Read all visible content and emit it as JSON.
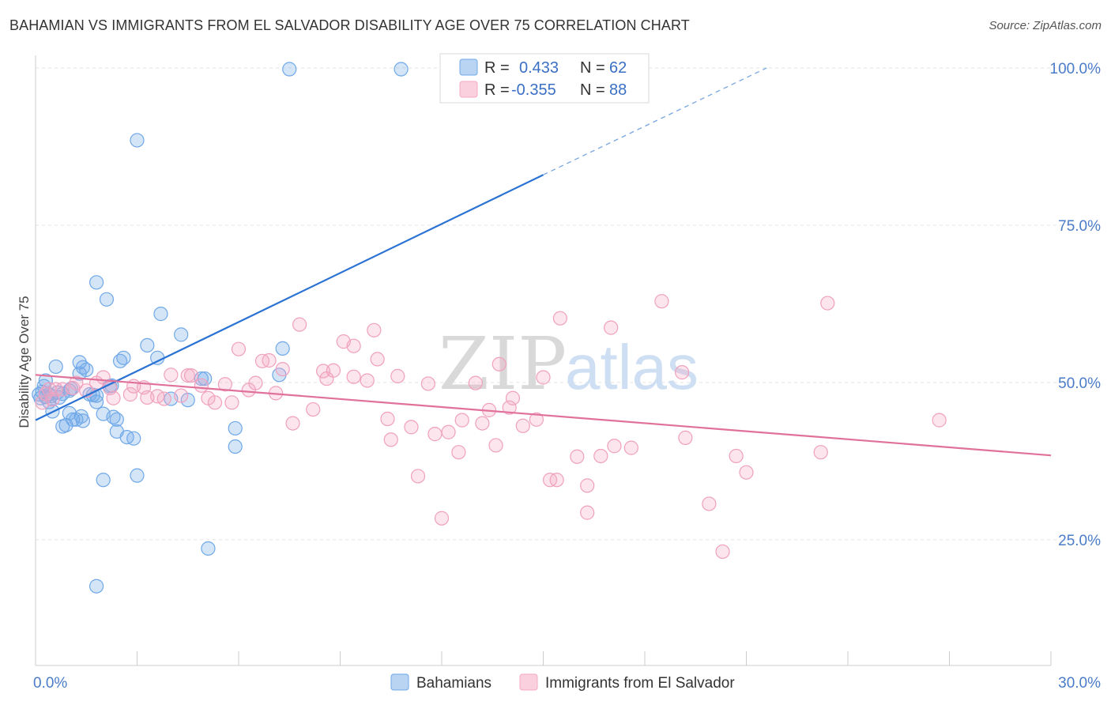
{
  "title": "BAHAMIAN VS IMMIGRANTS FROM EL SALVADOR DISABILITY AGE OVER 75 CORRELATION CHART",
  "source": "Source: ZipAtlas.com",
  "watermark": {
    "zip": "ZIP",
    "atlas": "atlas"
  },
  "colors": {
    "blue": "#6fa8e8",
    "blue_line": "#2a72d4",
    "pink": "#f5a9c4",
    "pink_line": "#e0719a",
    "tick_text": "#4a7cc9"
  },
  "legend": {
    "rows": [
      {
        "r_label": "R =",
        "r_value": "0.433",
        "n_label": "N =",
        "n_value": "62"
      },
      {
        "r_label": "R =",
        "r_value": "-0.355",
        "n_label": "N =",
        "n_value": "88"
      }
    ]
  },
  "chart_data": {
    "type": "scatter",
    "xlabel": "",
    "ylabel": "Disability Age Over 75",
    "xlim": [
      0,
      30
    ],
    "ylim": [
      5,
      102
    ],
    "x_tick_labels": [
      {
        "value": 0,
        "label": "0.0%"
      },
      {
        "value": 30,
        "label": "30.0%"
      }
    ],
    "y_tick_labels": [
      {
        "value": 25,
        "label": "25.0%"
      },
      {
        "value": 50,
        "label": "50.0%"
      },
      {
        "value": 75,
        "label": "75.0%"
      },
      {
        "value": 100,
        "label": "100.0%"
      }
    ],
    "grid": true,
    "legend_placement": "top-center",
    "series": [
      {
        "name": "Bahamians",
        "color": "#6fa8e8",
        "trend": {
          "x0": 0,
          "y0": 44.0,
          "x1": 15.0,
          "y1": 83.0,
          "dashed_to_x": 21.6,
          "dashed_to_y": 100.0
        },
        "points": [
          [
            0.1,
            48.1
          ],
          [
            0.2,
            48.5
          ],
          [
            0.3,
            47.7
          ],
          [
            0.3,
            50.3
          ],
          [
            0.4,
            46.9
          ],
          [
            0.4,
            48.1
          ],
          [
            0.5,
            45.4
          ],
          [
            0.6,
            52.5
          ],
          [
            0.7,
            47.6
          ],
          [
            0.8,
            48.2
          ],
          [
            0.8,
            43.0
          ],
          [
            0.9,
            43.2
          ],
          [
            1.0,
            48.7
          ],
          [
            1.0,
            45.1
          ],
          [
            1.1,
            44.1
          ],
          [
            1.2,
            44.1
          ],
          [
            1.3,
            53.2
          ],
          [
            1.3,
            51.4
          ],
          [
            1.4,
            52.4
          ],
          [
            1.4,
            43.9
          ],
          [
            1.5,
            52.0
          ],
          [
            1.6,
            48.1
          ],
          [
            1.7,
            48.0
          ],
          [
            1.8,
            47.9
          ],
          [
            1.8,
            17.6
          ],
          [
            1.8,
            46.9
          ],
          [
            1.8,
            65.9
          ],
          [
            2.0,
            45.0
          ],
          [
            2.0,
            34.5
          ],
          [
            2.1,
            63.2
          ],
          [
            2.2,
            49.4
          ],
          [
            2.3,
            44.5
          ],
          [
            2.4,
            44.1
          ],
          [
            2.4,
            42.2
          ],
          [
            2.5,
            53.4
          ],
          [
            2.6,
            53.9
          ],
          [
            2.7,
            41.3
          ],
          [
            2.9,
            41.1
          ],
          [
            3.0,
            88.5
          ],
          [
            3.0,
            35.2
          ],
          [
            3.3,
            55.9
          ],
          [
            3.6,
            53.9
          ],
          [
            3.7,
            60.9
          ],
          [
            4.0,
            47.4
          ],
          [
            4.3,
            57.6
          ],
          [
            4.5,
            47.2
          ],
          [
            4.9,
            50.6
          ],
          [
            5.0,
            50.6
          ],
          [
            5.1,
            23.6
          ],
          [
            5.9,
            42.7
          ],
          [
            5.9,
            39.8
          ],
          [
            7.2,
            51.2
          ],
          [
            7.3,
            55.4
          ],
          [
            7.5,
            99.8
          ],
          [
            10.8,
            99.8
          ],
          [
            0.15,
            47.5
          ],
          [
            0.45,
            47.8
          ],
          [
            0.65,
            48.4
          ],
          [
            1.05,
            49.0
          ],
          [
            1.35,
            44.6
          ],
          [
            2.25,
            49.5
          ],
          [
            0.25,
            49.4
          ]
        ]
      },
      {
        "name": "Immigrants from El Salvador",
        "color": "#f5a9c4",
        "trend": {
          "x0": 0,
          "y0": 51.2,
          "x1": 30,
          "y1": 38.4
        },
        "points": [
          [
            0.2,
            46.8
          ],
          [
            0.3,
            48.2
          ],
          [
            0.4,
            48.9
          ],
          [
            0.5,
            47.3
          ],
          [
            0.8,
            48.9
          ],
          [
            1.2,
            49.9
          ],
          [
            1.5,
            48.7
          ],
          [
            1.8,
            49.9
          ],
          [
            2.0,
            50.8
          ],
          [
            2.2,
            49.1
          ],
          [
            2.3,
            47.5
          ],
          [
            2.8,
            48.1
          ],
          [
            2.9,
            49.4
          ],
          [
            3.2,
            49.2
          ],
          [
            3.3,
            47.6
          ],
          [
            3.6,
            47.8
          ],
          [
            3.8,
            47.4
          ],
          [
            4.0,
            51.2
          ],
          [
            4.3,
            47.9
          ],
          [
            4.5,
            51.1
          ],
          [
            4.6,
            51.1
          ],
          [
            4.9,
            49.5
          ],
          [
            5.1,
            47.5
          ],
          [
            5.3,
            46.8
          ],
          [
            5.6,
            49.7
          ],
          [
            5.8,
            46.8
          ],
          [
            6.0,
            55.3
          ],
          [
            6.3,
            48.8
          ],
          [
            6.5,
            49.9
          ],
          [
            6.7,
            53.4
          ],
          [
            6.9,
            53.5
          ],
          [
            7.1,
            48.3
          ],
          [
            7.3,
            52.1
          ],
          [
            7.6,
            43.5
          ],
          [
            7.8,
            59.2
          ],
          [
            8.2,
            45.7
          ],
          [
            8.5,
            51.8
          ],
          [
            8.6,
            50.6
          ],
          [
            8.8,
            51.9
          ],
          [
            9.1,
            56.5
          ],
          [
            9.4,
            50.9
          ],
          [
            9.4,
            55.8
          ],
          [
            9.8,
            50.3
          ],
          [
            10.0,
            58.3
          ],
          [
            10.1,
            53.7
          ],
          [
            10.4,
            44.2
          ],
          [
            10.5,
            40.9
          ],
          [
            10.7,
            51.0
          ],
          [
            11.1,
            42.9
          ],
          [
            11.3,
            35.1
          ],
          [
            11.6,
            49.8
          ],
          [
            11.8,
            41.8
          ],
          [
            12.0,
            28.4
          ],
          [
            12.2,
            42.1
          ],
          [
            12.5,
            38.9
          ],
          [
            12.6,
            44.0
          ],
          [
            13.0,
            49.9
          ],
          [
            13.2,
            43.5
          ],
          [
            13.4,
            45.6
          ],
          [
            13.6,
            40.0
          ],
          [
            13.7,
            52.9
          ],
          [
            14.0,
            46.0
          ],
          [
            14.1,
            47.5
          ],
          [
            14.4,
            43.1
          ],
          [
            14.8,
            44.1
          ],
          [
            15.0,
            50.8
          ],
          [
            15.2,
            34.5
          ],
          [
            15.4,
            34.5
          ],
          [
            15.5,
            60.2
          ],
          [
            16.0,
            38.2
          ],
          [
            16.3,
            33.6
          ],
          [
            16.3,
            29.3
          ],
          [
            16.7,
            38.3
          ],
          [
            17.0,
            58.7
          ],
          [
            17.1,
            39.9
          ],
          [
            17.6,
            39.6
          ],
          [
            18.5,
            62.9
          ],
          [
            19.1,
            51.6
          ],
          [
            19.2,
            41.2
          ],
          [
            19.9,
            30.7
          ],
          [
            20.3,
            23.1
          ],
          [
            20.7,
            38.3
          ],
          [
            21.0,
            35.7
          ],
          [
            23.4,
            62.6
          ],
          [
            23.2,
            38.9
          ],
          [
            26.7,
            44.0
          ],
          [
            0.6,
            48.9
          ],
          [
            1.1,
            49.1
          ]
        ]
      }
    ]
  }
}
